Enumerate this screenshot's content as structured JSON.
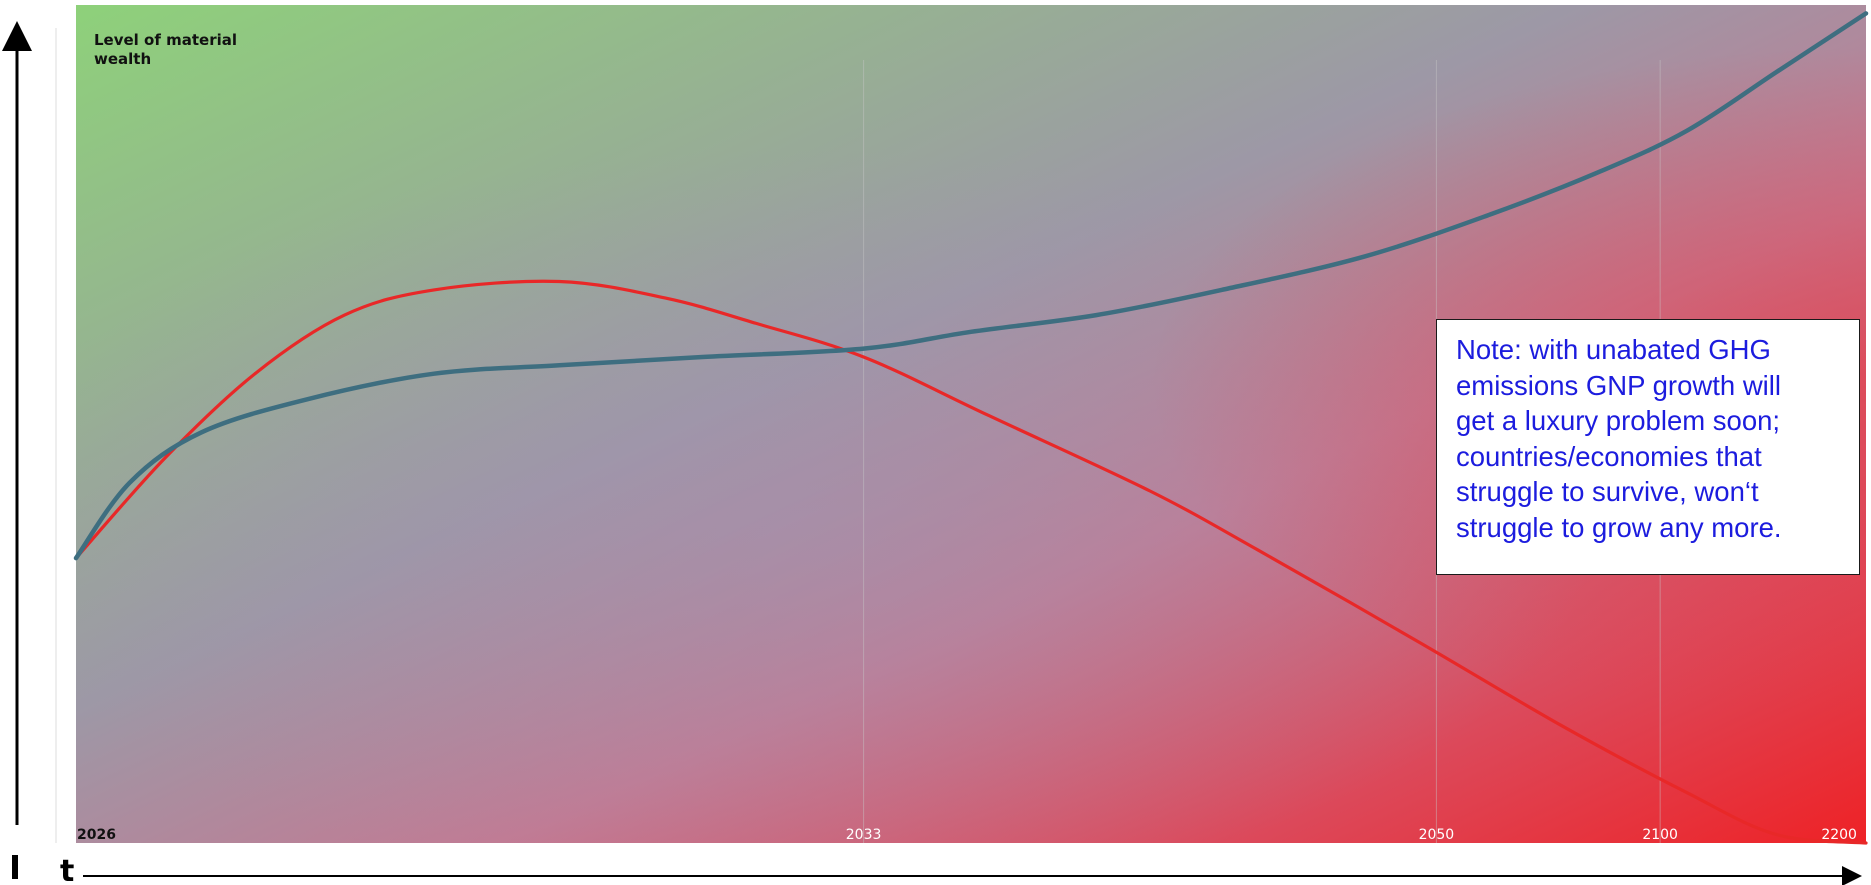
{
  "colors": {
    "red_curve": "#e82828",
    "blue_curve": "#3e6e80",
    "note_text": "#1c1cde",
    "background_top_left": "#8ed17a",
    "background_mid": "#a28fae",
    "background_bottom_right": "#ee2226"
  },
  "note": {
    "lines": [
      "Note: with unabated GHG",
      "emissions GNP growth will",
      "get a luxury problem soon;",
      "countries/economies that",
      "struggle to survive, won‘t",
      "struggle to grow any more."
    ]
  },
  "chart_data": {
    "type": "line",
    "title": "",
    "ylabel": "Level of material wealth",
    "xlabel": "t",
    "x_tick_labels": [
      "2026",
      "2033",
      "2050",
      "2100",
      "2200"
    ],
    "x_axis_scale": "non-uniform (ticks evenly labelled periods, not proportional)",
    "y_axis_values_shown": false,
    "grid": "faint vertical lines at 2033, 2050, 2100",
    "legend": "none",
    "series": [
      {
        "color": "red",
        "shape": "rises steeply from 2026, peaks before 2033, crosses the blue curve at 2033, then declines steadily to the bottom at 2200",
        "x": [
          0.0,
          0.05,
          0.1,
          0.15,
          0.2,
          0.27,
          0.33,
          0.38,
          0.44,
          0.51,
          0.6,
          0.66,
          0.75,
          0.83,
          0.9,
          0.95,
          1.0
        ],
        "y": [
          0.34,
          0.46,
          0.56,
          0.63,
          0.66,
          0.67,
          0.65,
          0.62,
          0.58,
          0.51,
          0.42,
          0.35,
          0.24,
          0.14,
          0.06,
          0.01,
          0.0
        ]
      },
      {
        "color": "blue",
        "shape": "rises quickly from 2026, flattens, then accelerates steeply towards 2200",
        "x": [
          0.0,
          0.03,
          0.07,
          0.13,
          0.2,
          0.27,
          0.35,
          0.44,
          0.5,
          0.57,
          0.64,
          0.72,
          0.79,
          0.85,
          0.9,
          0.95,
          1.0
        ],
        "y": [
          0.34,
          0.43,
          0.49,
          0.53,
          0.56,
          0.57,
          0.58,
          0.59,
          0.61,
          0.63,
          0.66,
          0.7,
          0.75,
          0.8,
          0.85,
          0.92,
          0.99
        ]
      }
    ],
    "x_axis_values": "x positions are fractions of the timeline from 2026 (0) to 2200 (1)",
    "y_axis_values": "y values are fractions of the wealth axis height (0 = bottom, 1 = top)"
  }
}
